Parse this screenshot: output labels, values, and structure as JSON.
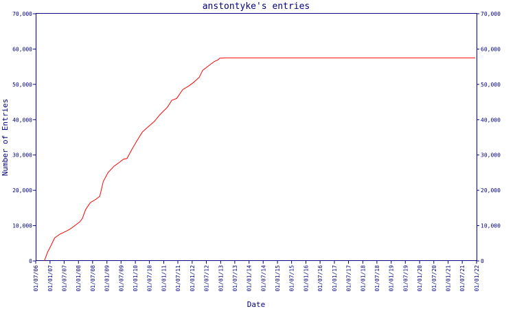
{
  "chart_data": {
    "type": "line",
    "title": "anstontyke's entries",
    "xlabel": "Date",
    "ylabel": "Number of Entries",
    "ylim": [
      0,
      70000
    ],
    "yticks": [
      0,
      10000,
      20000,
      30000,
      40000,
      50000,
      60000,
      70000
    ],
    "ytick_labels": [
      "0",
      "10,000",
      "20,000",
      "30,000",
      "40,000",
      "50,000",
      "60,000",
      "70,000"
    ],
    "xlim": [
      "2006-07-01",
      "2022-01-01"
    ],
    "xticks": [
      "2006-07-01",
      "2007-01-01",
      "2007-07-01",
      "2008-01-01",
      "2008-07-01",
      "2009-01-01",
      "2009-07-01",
      "2010-01-01",
      "2010-07-01",
      "2011-01-01",
      "2011-07-01",
      "2012-01-01",
      "2012-07-01",
      "2013-01-01",
      "2013-07-01",
      "2014-01-01",
      "2014-07-01",
      "2015-01-01",
      "2015-07-01",
      "2016-01-01",
      "2016-07-01",
      "2017-01-01",
      "2017-07-01",
      "2018-01-01",
      "2018-07-01",
      "2019-01-01",
      "2019-07-01",
      "2020-01-01",
      "2020-07-01",
      "2021-01-01",
      "2021-07-01",
      "2022-01-01"
    ],
    "xtick_labels": [
      "01/07/06",
      "01/01/07",
      "01/07/07",
      "01/01/08",
      "01/07/08",
      "01/01/09",
      "01/07/09",
      "01/01/10",
      "01/07/10",
      "01/01/11",
      "01/07/11",
      "01/01/12",
      "01/07/12",
      "01/01/13",
      "01/07/13",
      "01/01/14",
      "01/07/14",
      "01/01/15",
      "01/07/15",
      "01/01/16",
      "01/07/16",
      "01/01/17",
      "01/07/17",
      "01/01/18",
      "01/07/18",
      "01/01/19",
      "01/07/19",
      "01/01/20",
      "01/07/20",
      "01/01/21",
      "01/07/21",
      "01/01/22"
    ],
    "grid": false,
    "series": [
      {
        "color": "#ff0000",
        "points": [
          {
            "x": "2006-10-20",
            "y": 0
          },
          {
            "x": "2006-12-01",
            "y": 2500
          },
          {
            "x": "2007-01-10",
            "y": 4200
          },
          {
            "x": "2007-03-01",
            "y": 6500
          },
          {
            "x": "2007-05-01",
            "y": 7500
          },
          {
            "x": "2007-07-15",
            "y": 8300
          },
          {
            "x": "2007-09-15",
            "y": 9000
          },
          {
            "x": "2007-11-15",
            "y": 10000
          },
          {
            "x": "2008-01-15",
            "y": 11000
          },
          {
            "x": "2008-02-20",
            "y": 12000
          },
          {
            "x": "2008-04-01",
            "y": 14500
          },
          {
            "x": "2008-06-01",
            "y": 16500
          },
          {
            "x": "2008-08-15",
            "y": 17500
          },
          {
            "x": "2008-10-01",
            "y": 18300
          },
          {
            "x": "2008-11-15",
            "y": 22500
          },
          {
            "x": "2009-01-15",
            "y": 25000
          },
          {
            "x": "2009-04-01",
            "y": 26800
          },
          {
            "x": "2009-06-15",
            "y": 28000
          },
          {
            "x": "2009-08-01",
            "y": 28800
          },
          {
            "x": "2009-09-15",
            "y": 29000
          },
          {
            "x": "2009-11-15",
            "y": 31500
          },
          {
            "x": "2010-01-15",
            "y": 33800
          },
          {
            "x": "2010-04-01",
            "y": 36500
          },
          {
            "x": "2010-06-15",
            "y": 38000
          },
          {
            "x": "2010-09-01",
            "y": 39500
          },
          {
            "x": "2010-11-15",
            "y": 41500
          },
          {
            "x": "2011-02-15",
            "y": 43500
          },
          {
            "x": "2011-04-15",
            "y": 45500
          },
          {
            "x": "2011-06-15",
            "y": 46000
          },
          {
            "x": "2011-09-01",
            "y": 48500
          },
          {
            "x": "2011-11-15",
            "y": 49500
          },
          {
            "x": "2012-01-15",
            "y": 50500
          },
          {
            "x": "2012-04-01",
            "y": 52000
          },
          {
            "x": "2012-05-15",
            "y": 54000
          },
          {
            "x": "2012-07-15",
            "y": 55000
          },
          {
            "x": "2012-09-01",
            "y": 55800
          },
          {
            "x": "2012-10-15",
            "y": 56500
          },
          {
            "x": "2012-12-01",
            "y": 57000
          },
          {
            "x": "2012-12-20",
            "y": 57400
          },
          {
            "x": "2013-03-01",
            "y": 57500
          },
          {
            "x": "2021-12-15",
            "y": 57500
          }
        ]
      }
    ]
  }
}
